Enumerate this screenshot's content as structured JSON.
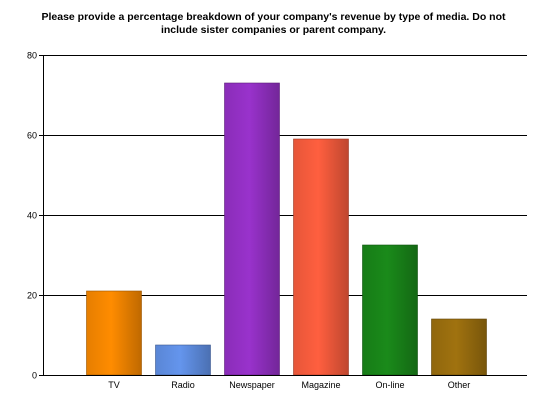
{
  "chart_data": {
    "type": "bar",
    "title_lines": [
      "Please provide a percentage breakdown of your company's revenue by type of media. Do not",
      "include sister companies or parent company."
    ],
    "categories": [
      "TV",
      "Radio",
      "Newspaper",
      "Magazine",
      "On-line",
      "Other"
    ],
    "values": [
      21,
      7.5,
      73,
      59,
      32.5,
      14
    ],
    "colors": [
      "#ff8c00",
      "#6495ed",
      "#9932cc",
      "#ff5f3f",
      "#1a8a1a",
      "#a0720f"
    ],
    "ylim": [
      0,
      80
    ],
    "yticks": [
      0,
      20,
      40,
      60,
      80
    ],
    "grid": true,
    "legend": "none"
  }
}
